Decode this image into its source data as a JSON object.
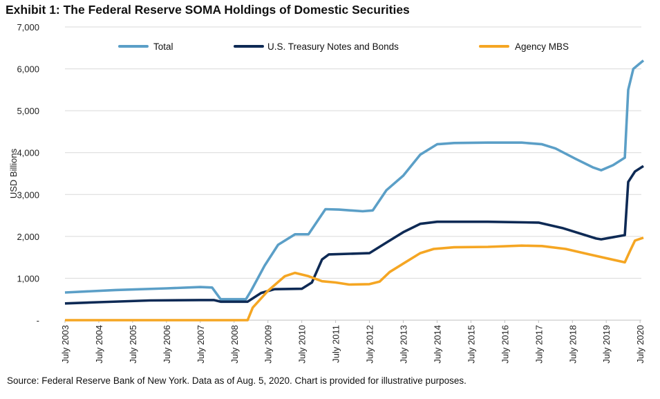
{
  "chart_data": {
    "type": "line",
    "title": "Exhibit 1: The Federal Reserve SOMA Holdings of Domestic Securities",
    "ylabel": "USD Billions",
    "xlabel": "",
    "ylim": [
      0,
      7000
    ],
    "yticks": [
      0,
      1000,
      2000,
      3000,
      4000,
      5000,
      6000,
      7000
    ],
    "ytick_labels": [
      "-",
      "1,000",
      "2,000",
      "3,000",
      "4,000",
      "5,000",
      "6,000",
      "7,000"
    ],
    "xtick_labels": [
      "July 2003",
      "July 2004",
      "July 2005",
      "July 2006",
      "July 2007",
      "July 2008",
      "July 2009",
      "July 2010",
      "July 2011",
      "July 2012",
      "July 2013",
      "July 2014",
      "July 2015",
      "July 2016",
      "July 2017",
      "July 2018",
      "July 2019",
      "July 2020"
    ],
    "xlim": [
      2003.5,
      2020.6
    ],
    "grid": true,
    "legend_position": "top",
    "series": [
      {
        "name": "Total",
        "color": "#5b9fc7",
        "x": [
          2003.5,
          2005,
          2006.5,
          2007.5,
          2007.85,
          2008.1,
          2008.85,
          2009.0,
          2009.4,
          2009.8,
          2010.3,
          2010.7,
          2011.2,
          2011.6,
          2012.3,
          2012.6,
          2013.0,
          2013.5,
          2014.0,
          2014.5,
          2015,
          2016,
          2017,
          2017.6,
          2018,
          2018.6,
          2019.1,
          2019.35,
          2019.7,
          2020.05,
          2020.15,
          2020.3,
          2020.45,
          2020.6
        ],
        "y": [
          660,
          720,
          760,
          790,
          780,
          500,
          500,
          700,
          1300,
          1800,
          2050,
          2050,
          2650,
          2640,
          2600,
          2620,
          3100,
          3450,
          3950,
          4200,
          4230,
          4240,
          4240,
          4200,
          4100,
          3850,
          3650,
          3580,
          3700,
          3880,
          5500,
          6000,
          6100,
          6200
        ]
      },
      {
        "name": "U.S. Treasury Notes and Bonds",
        "color": "#0e2a55",
        "x": [
          2003.5,
          2004.5,
          2006,
          2007.5,
          2007.9,
          2008.1,
          2008.9,
          2009.3,
          2009.7,
          2010.5,
          2010.8,
          2011.1,
          2011.3,
          2012.5,
          2013.0,
          2013.5,
          2014.0,
          2014.5,
          2016,
          2017.5,
          2018.2,
          2019.2,
          2019.35,
          2020.05,
          2020.15,
          2020.35,
          2020.6
        ],
        "y": [
          400,
          430,
          470,
          480,
          480,
          440,
          440,
          650,
          740,
          750,
          900,
          1450,
          1570,
          1600,
          1850,
          2100,
          2300,
          2350,
          2350,
          2330,
          2200,
          1950,
          1930,
          2030,
          3300,
          3550,
          3680
        ]
      },
      {
        "name": "Agency MBS",
        "color": "#f5a623",
        "x": [
          2003.5,
          2008.9,
          2009.05,
          2009.5,
          2010.0,
          2010.3,
          2010.7,
          2011.1,
          2011.5,
          2011.9,
          2012.5,
          2012.8,
          2013.1,
          2013.5,
          2014.0,
          2014.4,
          2015,
          2016,
          2017,
          2017.6,
          2018.3,
          2019,
          2020.05,
          2020.2,
          2020.35,
          2020.6
        ],
        "y": [
          0,
          0,
          300,
          700,
          1050,
          1130,
          1050,
          930,
          900,
          850,
          860,
          920,
          1150,
          1350,
          1600,
          1700,
          1740,
          1750,
          1780,
          1770,
          1700,
          1570,
          1380,
          1650,
          1900,
          1970
        ]
      }
    ],
    "source": "Source: Federal Reserve Bank of New York. Data as of Aug. 5, 2020. Chart is provided for illustrative purposes."
  }
}
